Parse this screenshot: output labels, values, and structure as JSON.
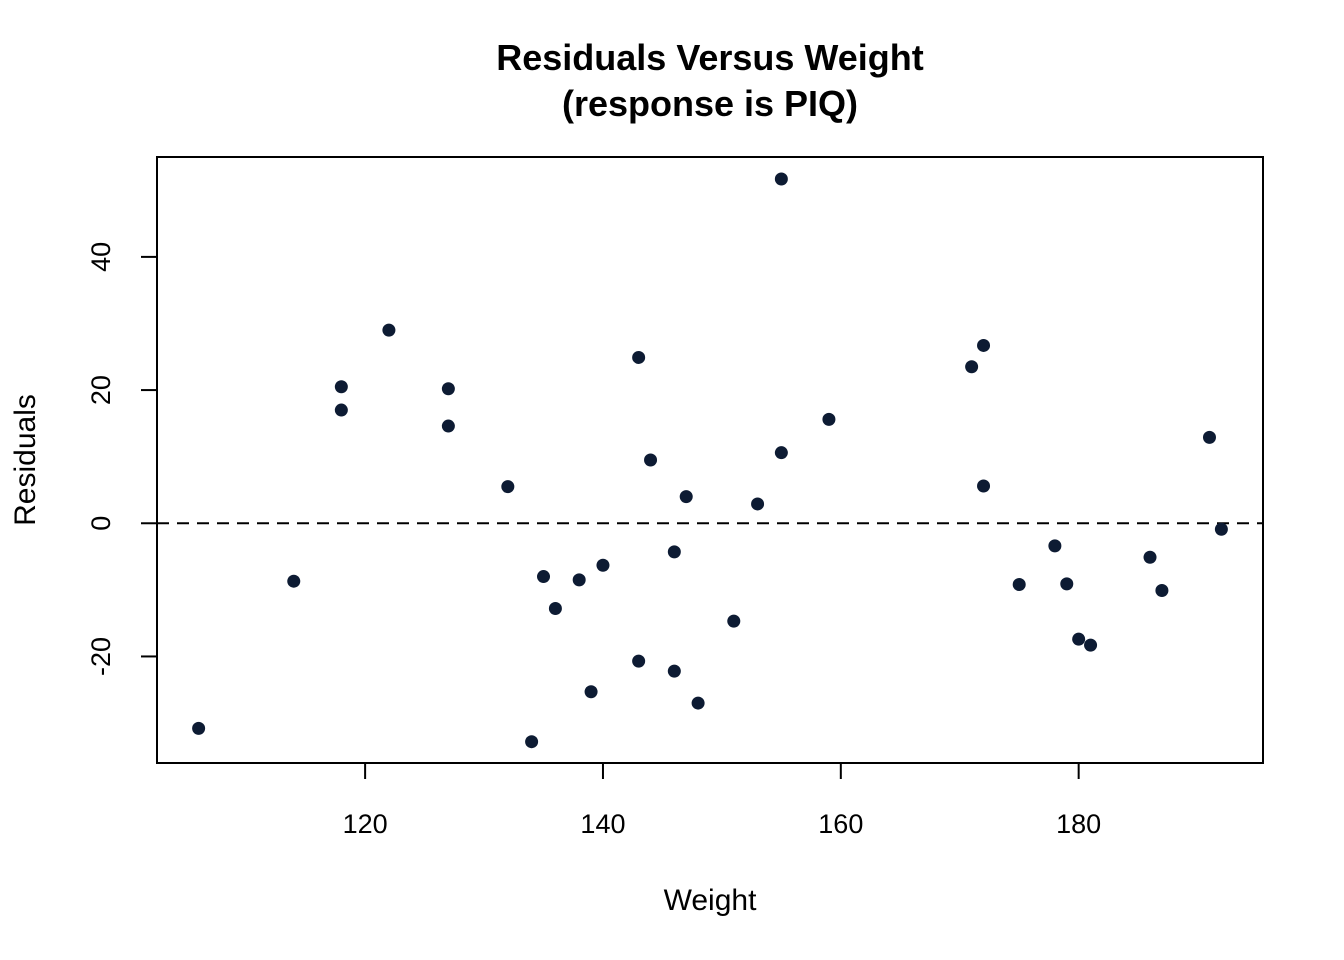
{
  "chart_data": {
    "type": "scatter",
    "title": "Residuals Versus Weight",
    "subtitle": "(response is PIQ)",
    "xlabel": "Weight",
    "ylabel": "Residuals",
    "xlim": [
      102.5,
      195.5
    ],
    "ylim": [
      -36,
      55
    ],
    "x_ticks": [
      120,
      140,
      160,
      180
    ],
    "y_ticks": [
      -20,
      0,
      20,
      40
    ],
    "reference_line": {
      "y": 0,
      "style": "dashed"
    },
    "grid": false,
    "point_color": "#0d1b33",
    "points": [
      {
        "x": 106,
        "y": -30.8
      },
      {
        "x": 114,
        "y": -8.7
      },
      {
        "x": 118,
        "y": 20.5
      },
      {
        "x": 118,
        "y": 17.0
      },
      {
        "x": 122,
        "y": 29.0
      },
      {
        "x": 127,
        "y": 20.2
      },
      {
        "x": 127,
        "y": 14.6
      },
      {
        "x": 132,
        "y": 5.5
      },
      {
        "x": 134,
        "y": -32.8
      },
      {
        "x": 135,
        "y": -8.0
      },
      {
        "x": 136,
        "y": -12.8
      },
      {
        "x": 138,
        "y": -8.5
      },
      {
        "x": 139,
        "y": -25.3
      },
      {
        "x": 140,
        "y": -6.3
      },
      {
        "x": 143,
        "y": 24.9
      },
      {
        "x": 143,
        "y": -20.7
      },
      {
        "x": 144,
        "y": 9.5
      },
      {
        "x": 146,
        "y": -4.3
      },
      {
        "x": 146,
        "y": -22.2
      },
      {
        "x": 147,
        "y": 4.0
      },
      {
        "x": 148,
        "y": -27.0
      },
      {
        "x": 151,
        "y": -14.7
      },
      {
        "x": 153,
        "y": 2.9
      },
      {
        "x": 155,
        "y": 51.7
      },
      {
        "x": 155,
        "y": 10.6
      },
      {
        "x": 159,
        "y": 15.6
      },
      {
        "x": 171,
        "y": 23.5
      },
      {
        "x": 172,
        "y": 26.7
      },
      {
        "x": 172,
        "y": 5.6
      },
      {
        "x": 175,
        "y": -9.2
      },
      {
        "x": 178,
        "y": -3.4
      },
      {
        "x": 179,
        "y": -9.1
      },
      {
        "x": 180,
        "y": -17.4
      },
      {
        "x": 181,
        "y": -18.3
      },
      {
        "x": 186,
        "y": -5.1
      },
      {
        "x": 187,
        "y": -10.1
      },
      {
        "x": 191,
        "y": 12.9
      },
      {
        "x": 192,
        "y": -0.9
      }
    ]
  }
}
